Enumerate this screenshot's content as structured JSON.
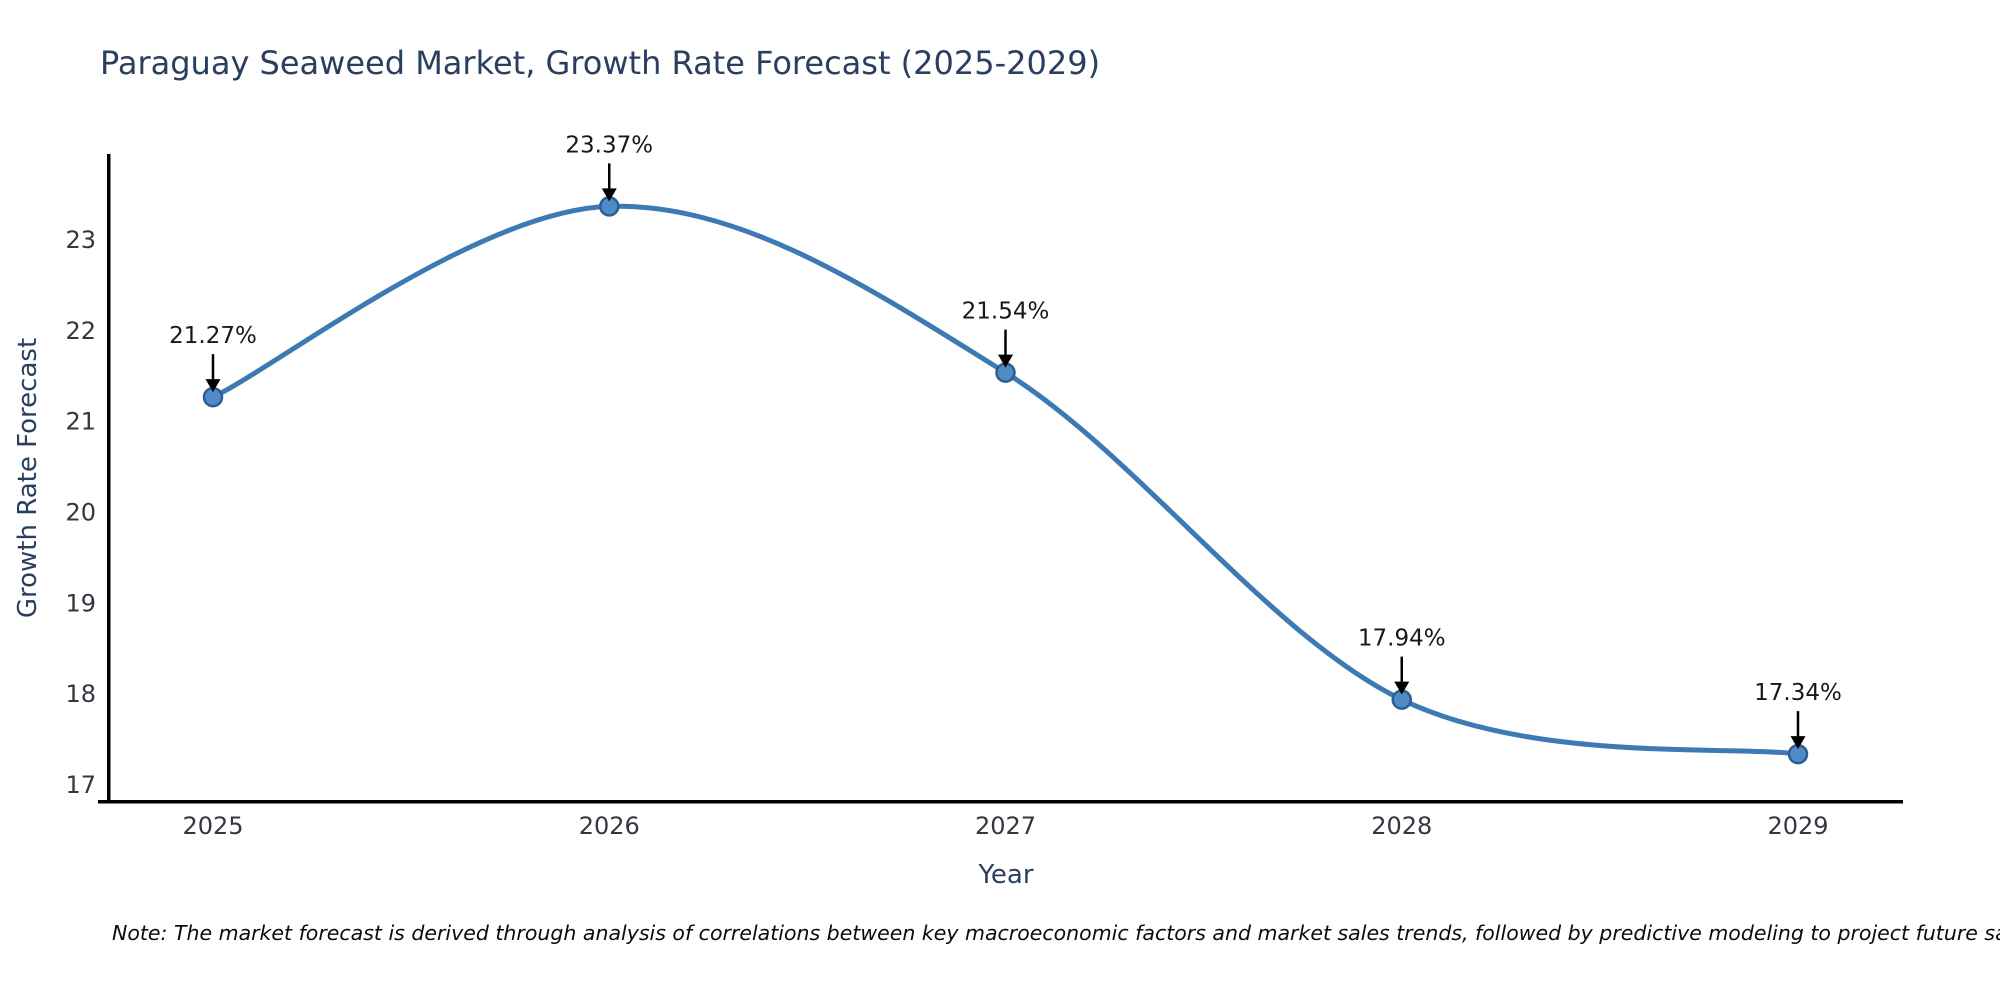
{
  "title": "Paraguay Seaweed Market, Growth Rate Forecast (2025-2029)",
  "note": "Note: The market forecast is derived through analysis of correlations between key macroeconomic factors and market sales trends, followed by predictive modeling to project future sales.",
  "chart_data": {
    "type": "line",
    "title": "Paraguay Seaweed Market, Growth Rate Forecast (2025-2029)",
    "xlabel": "Year",
    "ylabel": "Growth Rate Forecast",
    "x": [
      "2025",
      "2026",
      "2027",
      "2028",
      "2029"
    ],
    "values": [
      21.27,
      23.37,
      21.54,
      17.94,
      17.34
    ],
    "point_labels": [
      "21.27%",
      "23.37%",
      "21.54%",
      "17.94%",
      "17.34%"
    ],
    "y_ticks": [
      17,
      18,
      19,
      20,
      21,
      22,
      23
    ],
    "ylim": [
      16.83,
      23.9
    ],
    "line_shape": "spline",
    "grid": false,
    "legend": false,
    "colors": {
      "line": "#3d7ab3",
      "marker_fill": "#4f8bc4",
      "marker_edge": "#2c5e91",
      "axis": "#000000",
      "annotation": "#000000",
      "title_text": "#2a3f5f",
      "tick_text": "#333740"
    }
  }
}
